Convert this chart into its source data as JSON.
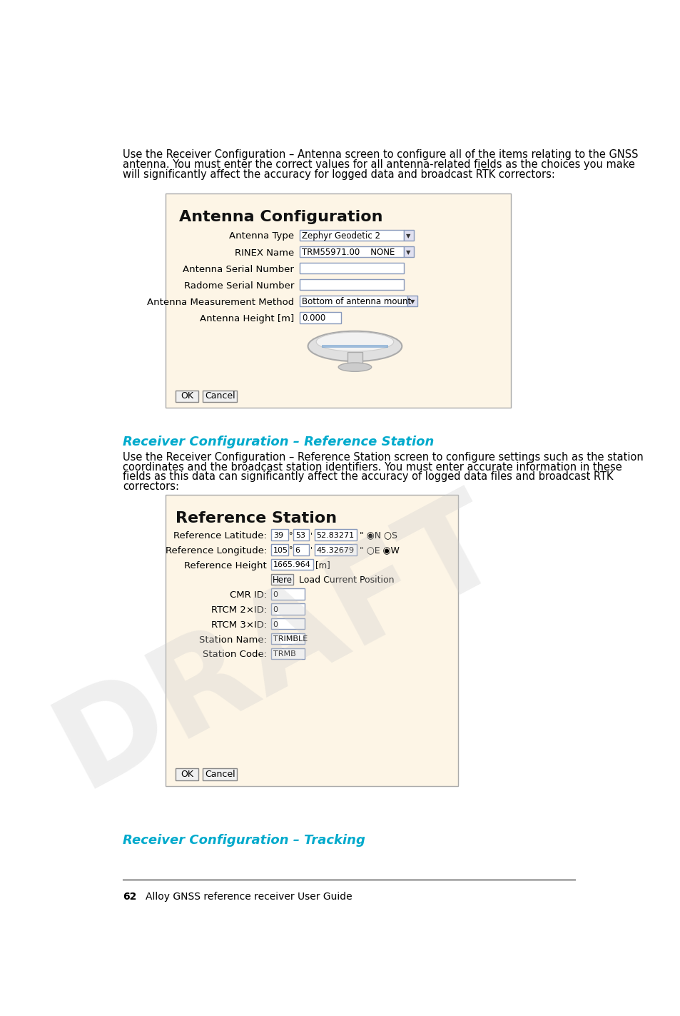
{
  "page_num": "62",
  "page_footer": "Alloy GNSS reference receiver User Guide",
  "bg_color": "#ffffff",
  "body_text_color": "#000000",
  "heading_color": "#00aacc",
  "panel_bg": "#fdf5e6",
  "panel_border": "#cccccc",
  "body_fontsize": 10.5,
  "heading_fontsize": 13,
  "footer_fontsize": 10,
  "para1_lines": [
    "Use the Receiver Configuration – Antenna screen to configure all of the items relating to the GNSS",
    "antenna. You must enter the correct values for all antenna-related fields as the choices you make",
    "will significantly affect the accuracy for logged data and broadcast RTK correctors:"
  ],
  "panel1_title": "Antenna Configuration",
  "panel1_fields": [
    [
      "Antenna Type",
      "Zephyr Geodetic 2",
      true
    ],
    [
      "RINEX Name",
      "TRM55971.00    NONE",
      true
    ],
    [
      "Antenna Serial Number",
      "",
      false
    ],
    [
      "Radome Serial Number",
      "",
      false
    ],
    [
      "Antenna Measurement Method",
      "Bottom of antenna mount",
      true
    ],
    [
      "Antenna Height [m]",
      "0.000",
      false
    ]
  ],
  "heading2": "Receiver Configuration – Reference Station",
  "para2_lines": [
    "Use the Receiver Configuration – Reference Station screen to configure settings such as the station",
    "coordinates and the broadcast station identifiers. You must enter accurate information in these",
    "fields as this data can significantly affect the accuracy of logged data files and broadcast RTK",
    "correctors:"
  ],
  "panel2_title": "Reference Station",
  "panel2_rows": [
    {
      "label": "Reference Latitude:",
      "fields": [
        "39",
        "53",
        "52.83271"
      ],
      "type": "latlon",
      "suffix": "\" ◉N ○S"
    },
    {
      "label": "Reference Longitude:",
      "fields": [
        "105",
        "6",
        "45.32679"
      ],
      "type": "latlon",
      "suffix": "\" ○E ◉W"
    },
    {
      "label": "Reference Height",
      "fields": [
        "1665.964"
      ],
      "type": "height",
      "suffix": "[m]"
    },
    {
      "label": "",
      "fields": [],
      "type": "here",
      "suffix": "Load Current Position"
    },
    {
      "label": "CMR ID:",
      "fields": [
        "0"
      ],
      "type": "single",
      "suffix": ""
    },
    {
      "label": "RTCM 2×ID:",
      "fields": [
        "0"
      ],
      "type": "single",
      "suffix": ""
    },
    {
      "label": "RTCM 3×ID:",
      "fields": [
        "0"
      ],
      "type": "single",
      "suffix": ""
    },
    {
      "label": "Station Name:",
      "fields": [
        "TRIMBLE"
      ],
      "type": "single",
      "suffix": ""
    },
    {
      "label": "Station Code:",
      "fields": [
        "TRMB"
      ],
      "type": "single",
      "suffix": ""
    }
  ],
  "heading3": "Receiver Configuration – Tracking"
}
